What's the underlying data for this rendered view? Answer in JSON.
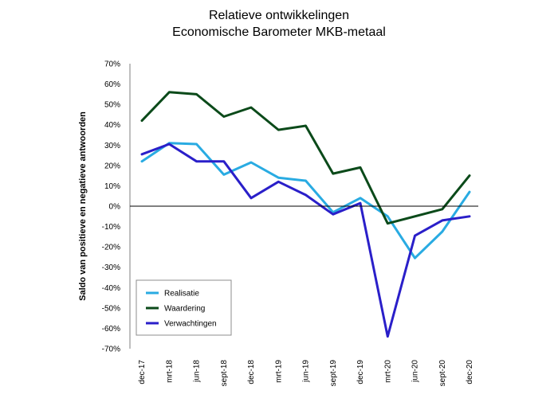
{
  "chart_data": {
    "type": "line",
    "title": [
      "Relatieve ontwikkelingen",
      "Economische Barometer MKB-metaal"
    ],
    "ylabel": "Saldo van positieve en negatieve antwoorden",
    "xlabel": "",
    "ylim": [
      -70,
      70
    ],
    "yticks": [
      70,
      60,
      50,
      40,
      30,
      20,
      10,
      0,
      -10,
      -20,
      -30,
      -40,
      -50,
      -60,
      -70
    ],
    "ytick_labels": [
      "70%",
      "60%",
      "50%",
      "40%",
      "30%",
      "20%",
      "10%",
      "0%",
      "-10%",
      "-20%",
      "-30%",
      "-40%",
      "-50%",
      "-60%",
      "-70%"
    ],
    "categories": [
      "dec-17",
      "mrt-18",
      "jun-18",
      "sept-18",
      "dec-18",
      "mrt-19",
      "jun-19",
      "sept-19",
      "dec-19",
      "mrt-20",
      "jun-20",
      "sept-20",
      "dec-20"
    ],
    "grid": false,
    "legend_position": "bottom-left",
    "zero_line": true,
    "series": [
      {
        "name": "Realisatie",
        "color": "#29abe2",
        "values": [
          22,
          31,
          30.5,
          15.5,
          21.5,
          14,
          12.5,
          -3,
          4,
          -5,
          -25.5,
          -12.5,
          7
        ]
      },
      {
        "name": "Waardering",
        "color": "#0b4a1a",
        "values": [
          42,
          56,
          55,
          44,
          48.5,
          37.5,
          39.5,
          16,
          19,
          -8.5,
          null,
          -1.5,
          15
        ]
      },
      {
        "name": "Verwachtingen",
        "color": "#2a1fc9",
        "values": [
          25.5,
          30.5,
          22,
          22,
          4,
          12,
          5.5,
          -4,
          1.5,
          -64,
          -14.5,
          -7,
          -5
        ]
      }
    ]
  }
}
